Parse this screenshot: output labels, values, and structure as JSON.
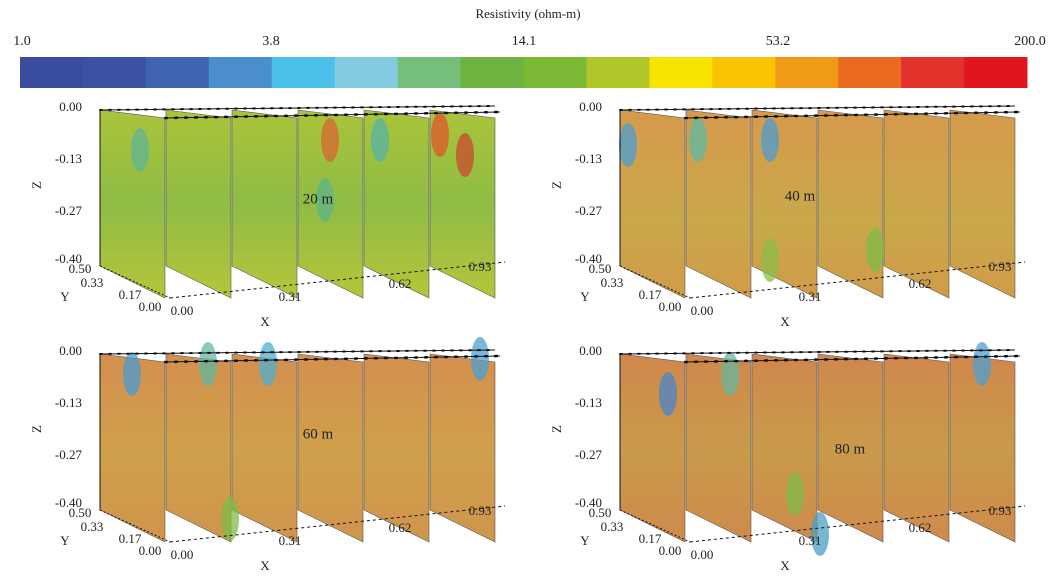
{
  "colorbar": {
    "title": "Resistivity (ohm-m)",
    "labels": [
      "1.0",
      "3.8",
      "14.1",
      "53.2",
      "200.0"
    ],
    "colors": [
      "#3a4c9e",
      "#3b52a3",
      "#3f65b0",
      "#4a8ecb",
      "#4bc0ea",
      "#82cbe0",
      "#76bf7a",
      "#6cb33f",
      "#7bb935",
      "#b0c628",
      "#f6e400",
      "#fac400",
      "#f19a17",
      "#ea6a1f",
      "#e2322b",
      "#e0161f"
    ]
  },
  "panels": [
    {
      "label": "20 m",
      "z_axis": "Z",
      "y_axis": "Y",
      "x_axis": "X",
      "z_ticks": [
        "0.00",
        "-0.13",
        "-0.27",
        "-0.40"
      ],
      "y_ticks": [
        "0.50",
        "0.33",
        "0.17",
        "0.00"
      ],
      "x_ticks": [
        "0.00",
        "0.31",
        "0.62",
        "0.93"
      ]
    },
    {
      "label": "40 m",
      "z_axis": "Z",
      "y_axis": "Y",
      "x_axis": "X",
      "z_ticks": [
        "0.00",
        "-0.13",
        "-0.27",
        "-0.40"
      ],
      "y_ticks": [
        "0.50",
        "0.33",
        "0.17",
        "0.00"
      ],
      "x_ticks": [
        "0.00",
        "0.31",
        "0.62",
        "0.93"
      ]
    },
    {
      "label": "60 m",
      "z_axis": "Z",
      "y_axis": "Y",
      "x_axis": "X",
      "z_ticks": [
        "0.00",
        "-0.13",
        "-0.27",
        "-0.40"
      ],
      "y_ticks": [
        "0.50",
        "0.33",
        "0.17",
        "0.00"
      ],
      "x_ticks": [
        "0.00",
        "0.31",
        "0.62",
        "0.93"
      ]
    },
    {
      "label": "80 m",
      "z_axis": "Z",
      "y_axis": "Y",
      "x_axis": "X",
      "z_ticks": [
        "0.00",
        "-0.13",
        "-0.27",
        "-0.40"
      ],
      "y_ticks": [
        "0.50",
        "0.33",
        "0.17",
        "0.00"
      ],
      "x_ticks": [
        "0.00",
        "0.31",
        "0.62",
        "0.93"
      ]
    }
  ]
}
